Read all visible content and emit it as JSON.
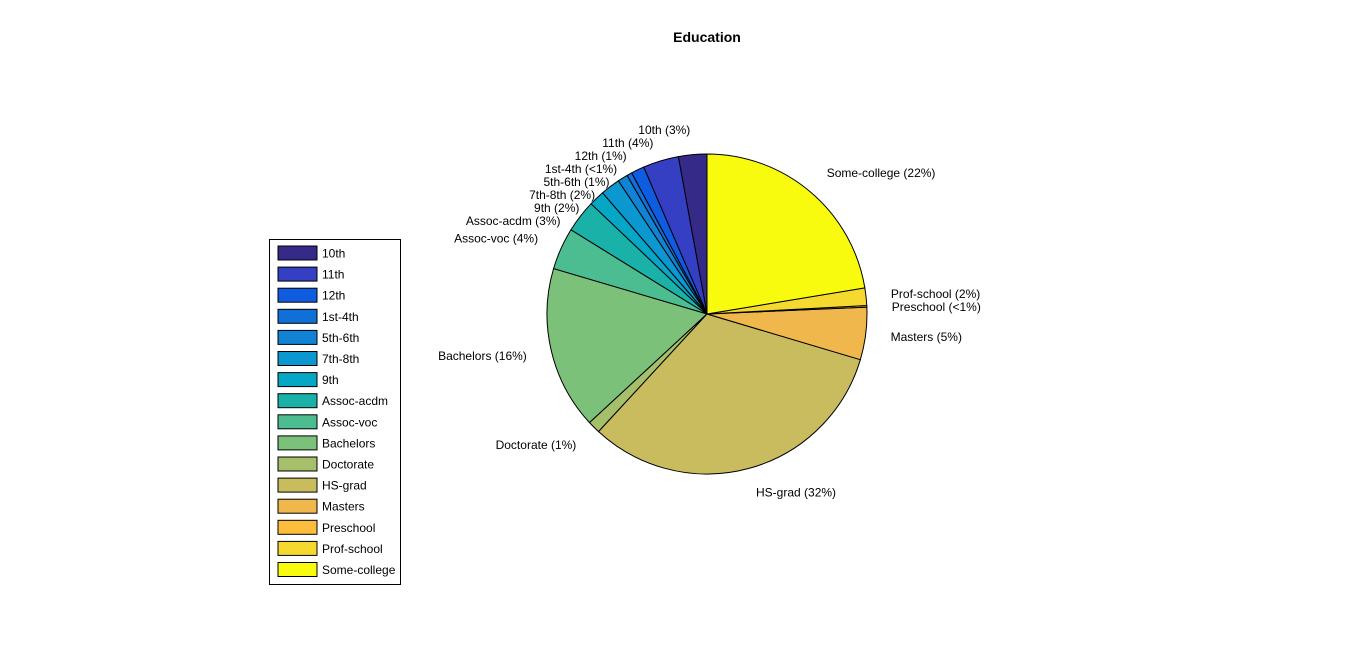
{
  "chart_data": {
    "type": "pie",
    "title": "Education",
    "legend_position": "left",
    "slices": [
      {
        "name": "10th",
        "value": 2.87,
        "label": "10th  (3%)",
        "color": "#352a87"
      },
      {
        "name": "11th",
        "value": 3.61,
        "label": "11th  (4%)",
        "color": "#343fc4"
      },
      {
        "name": "12th",
        "value": 1.33,
        "label": "12th  (1%)",
        "color": "#0f5ce0"
      },
      {
        "name": "1st-4th",
        "value": 0.52,
        "label": "1st-4th  (<1%)",
        "color": "#1170d8"
      },
      {
        "name": "5th-6th",
        "value": 1.02,
        "label": "5th-6th  (1%)",
        "color": "#1283d4"
      },
      {
        "name": "7th-8th",
        "value": 1.98,
        "label": "7th-8th  (2%)",
        "color": "#0b98d0"
      },
      {
        "name": "9th",
        "value": 1.58,
        "label": "9th  (2%)",
        "color": "#06a7c6"
      },
      {
        "name": "Assoc-acdm",
        "value": 3.28,
        "label": "Assoc-acdm  (3%)",
        "color": "#1ab2a8"
      },
      {
        "name": "Assoc-voc",
        "value": 4.24,
        "label": "Assoc-voc  (4%)",
        "color": "#4bbd91"
      },
      {
        "name": "Bachelors",
        "value": 16.45,
        "label": "Bachelors (16%)",
        "color": "#7cc17a"
      },
      {
        "name": "Doctorate",
        "value": 1.27,
        "label": "Doctorate  (1%)",
        "color": "#a6bf6a"
      },
      {
        "name": "HS-grad",
        "value": 32.25,
        "label": "HS-grad (32%)",
        "color": "#c9bc5f"
      },
      {
        "name": "Masters",
        "value": 5.29,
        "label": "Masters  (5%)",
        "color": "#f0b84c"
      },
      {
        "name": "Preschool",
        "value": 0.16,
        "label": "Preschool  (<1%)",
        "color": "#fdbd3c"
      },
      {
        "name": "Prof-school",
        "value": 1.77,
        "label": "Prof-school  (2%)",
        "color": "#f6d92e"
      },
      {
        "name": "Some-college",
        "value": 22.39,
        "label": "Some-college (22%)",
        "color": "#f9fb0e"
      }
    ]
  }
}
